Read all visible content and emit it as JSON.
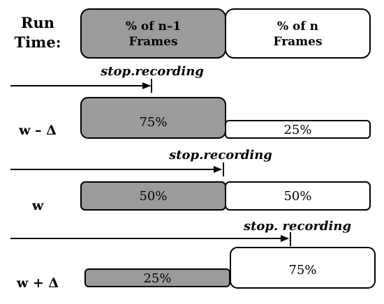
{
  "header": {
    "run_time_line1": "Run",
    "run_time_line2": "Time:",
    "prev_frames_line1": "% of n–1",
    "prev_frames_line2": "Frames",
    "curr_frames_line1": "% of n",
    "curr_frames_line2": "Frames"
  },
  "colors": {
    "gray_fill": "#9b9b9b",
    "white_fill": "#ffffff",
    "stroke": "#000000"
  },
  "rows": [
    {
      "label": "w – Δ",
      "marker": "stop.recording",
      "prev_pct": "75%",
      "curr_pct": "25%"
    },
    {
      "label": "w",
      "marker": "stop.recording",
      "prev_pct": "50%",
      "curr_pct": "50%"
    },
    {
      "label": "w + Δ",
      "marker": "stop. recording",
      "prev_pct": "25%",
      "curr_pct": "75%"
    }
  ]
}
